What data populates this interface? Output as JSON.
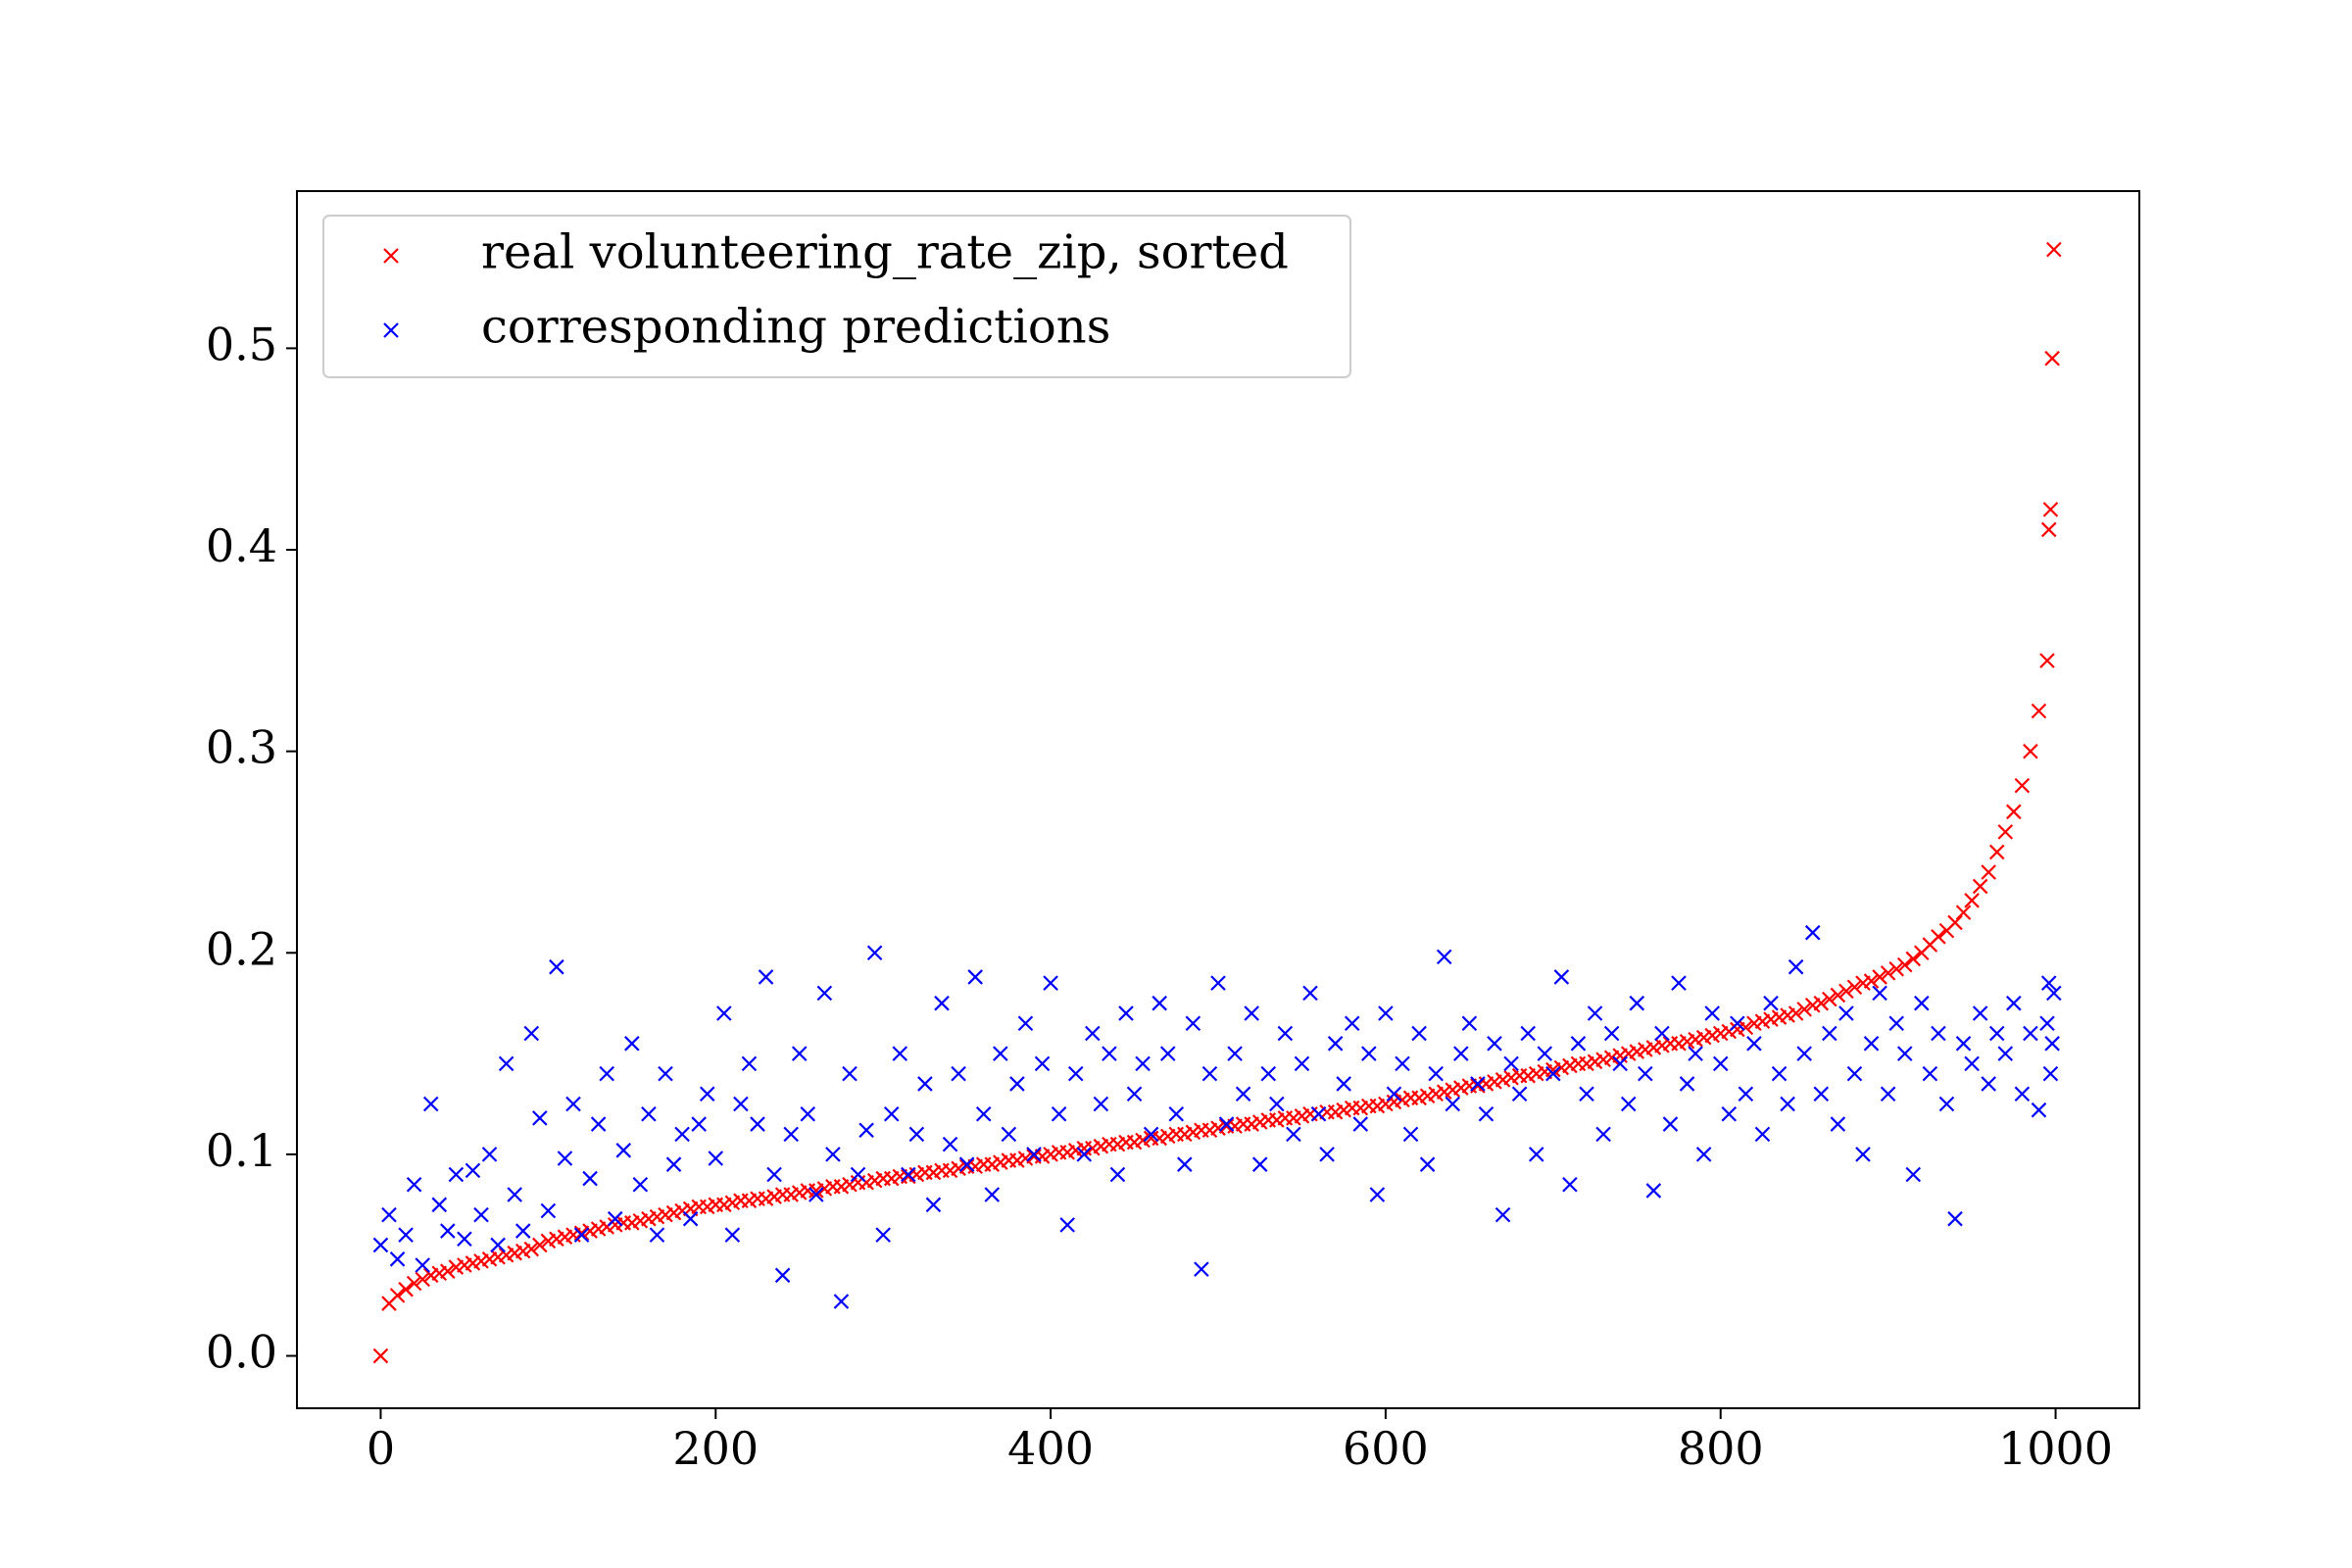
{
  "chart_data": {
    "type": "scatter",
    "xlim": [
      -50,
      1050
    ],
    "ylim": [
      -0.026,
      0.578
    ],
    "xticks": [
      0,
      200,
      400,
      600,
      800,
      1000
    ],
    "yticks": [
      {
        "value": 0,
        "label": "0.0"
      },
      0.1,
      0.2,
      0.3,
      0.4,
      0.5
    ],
    "legend": "upper left",
    "marker": "x",
    "x": [
      0,
      5,
      10,
      15,
      20,
      25,
      30,
      35,
      40,
      45,
      50,
      55,
      60,
      65,
      70,
      75,
      80,
      85,
      90,
      95,
      100,
      105,
      110,
      115,
      120,
      125,
      130,
      135,
      140,
      145,
      150,
      155,
      160,
      165,
      170,
      175,
      180,
      185,
      190,
      195,
      200,
      205,
      210,
      215,
      220,
      225,
      230,
      235,
      240,
      245,
      250,
      255,
      260,
      265,
      270,
      275,
      280,
      285,
      290,
      295,
      300,
      305,
      310,
      315,
      320,
      325,
      330,
      335,
      340,
      345,
      350,
      355,
      360,
      365,
      370,
      375,
      380,
      385,
      390,
      395,
      400,
      405,
      410,
      415,
      420,
      425,
      430,
      435,
      440,
      445,
      450,
      455,
      460,
      465,
      470,
      475,
      480,
      485,
      490,
      495,
      500,
      505,
      510,
      515,
      520,
      525,
      530,
      535,
      540,
      545,
      550,
      555,
      560,
      565,
      570,
      575,
      580,
      585,
      590,
      595,
      600,
      605,
      610,
      615,
      620,
      625,
      630,
      635,
      640,
      645,
      650,
      655,
      660,
      665,
      670,
      675,
      680,
      685,
      690,
      695,
      700,
      705,
      710,
      715,
      720,
      725,
      730,
      735,
      740,
      745,
      750,
      755,
      760,
      765,
      770,
      775,
      780,
      785,
      790,
      795,
      800,
      805,
      810,
      815,
      820,
      825,
      830,
      835,
      840,
      845,
      850,
      855,
      860,
      865,
      870,
      875,
      880,
      885,
      890,
      895,
      900,
      905,
      910,
      915,
      920,
      925,
      930,
      935,
      940,
      945,
      950,
      955,
      960,
      965,
      970,
      975,
      980,
      985,
      990,
      995,
      996,
      997,
      998,
      999
    ],
    "series": [
      {
        "name": "real volunteering_rate_zip, sorted",
        "color": "#ff0000",
        "values": [
          0.0,
          0.026,
          0.03,
          0.033,
          0.036,
          0.038,
          0.04,
          0.041,
          0.042,
          0.044,
          0.045,
          0.046,
          0.047,
          0.048,
          0.049,
          0.05,
          0.051,
          0.052,
          0.053,
          0.055,
          0.057,
          0.058,
          0.059,
          0.06,
          0.061,
          0.062,
          0.063,
          0.064,
          0.065,
          0.066,
          0.066,
          0.067,
          0.068,
          0.069,
          0.07,
          0.071,
          0.072,
          0.073,
          0.074,
          0.074,
          0.075,
          0.075,
          0.076,
          0.077,
          0.077,
          0.078,
          0.078,
          0.079,
          0.08,
          0.08,
          0.081,
          0.082,
          0.082,
          0.083,
          0.084,
          0.084,
          0.085,
          0.086,
          0.086,
          0.087,
          0.088,
          0.088,
          0.089,
          0.089,
          0.09,
          0.091,
          0.091,
          0.092,
          0.092,
          0.093,
          0.094,
          0.094,
          0.095,
          0.095,
          0.096,
          0.097,
          0.097,
          0.098,
          0.099,
          0.099,
          0.1,
          0.101,
          0.101,
          0.102,
          0.103,
          0.103,
          0.104,
          0.105,
          0.105,
          0.106,
          0.106,
          0.107,
          0.108,
          0.108,
          0.109,
          0.11,
          0.11,
          0.111,
          0.112,
          0.112,
          0.113,
          0.114,
          0.114,
          0.115,
          0.115,
          0.116,
          0.117,
          0.117,
          0.118,
          0.118,
          0.119,
          0.12,
          0.12,
          0.121,
          0.121,
          0.122,
          0.123,
          0.123,
          0.124,
          0.124,
          0.125,
          0.126,
          0.127,
          0.128,
          0.128,
          0.129,
          0.13,
          0.131,
          0.132,
          0.133,
          0.134,
          0.134,
          0.135,
          0.136,
          0.137,
          0.138,
          0.139,
          0.139,
          0.14,
          0.141,
          0.142,
          0.143,
          0.144,
          0.145,
          0.145,
          0.146,
          0.147,
          0.148,
          0.149,
          0.15,
          0.151,
          0.152,
          0.153,
          0.154,
          0.155,
          0.155,
          0.156,
          0.157,
          0.158,
          0.159,
          0.16,
          0.161,
          0.162,
          0.163,
          0.165,
          0.166,
          0.167,
          0.168,
          0.169,
          0.17,
          0.172,
          0.174,
          0.175,
          0.177,
          0.179,
          0.181,
          0.183,
          0.185,
          0.186,
          0.188,
          0.19,
          0.192,
          0.194,
          0.197,
          0.2,
          0.204,
          0.208,
          0.211,
          0.215,
          0.22,
          0.226,
          0.233,
          0.24,
          0.25,
          0.26,
          0.27,
          0.283,
          0.3,
          0.32,
          0.345,
          0.41,
          0.42,
          0.495,
          0.549
        ]
      },
      {
        "name": "corresponding predictions",
        "color": "#0000ff",
        "values": [
          0.055,
          0.07,
          0.048,
          0.06,
          0.085,
          0.045,
          0.125,
          0.075,
          0.062,
          0.09,
          0.058,
          0.092,
          0.07,
          0.1,
          0.055,
          0.145,
          0.08,
          0.062,
          0.16,
          0.118,
          0.072,
          0.193,
          0.098,
          0.125,
          0.06,
          0.088,
          0.115,
          0.14,
          0.068,
          0.102,
          0.155,
          0.085,
          0.12,
          0.06,
          0.14,
          0.095,
          0.11,
          0.068,
          0.115,
          0.13,
          0.098,
          0.17,
          0.06,
          0.125,
          0.145,
          0.115,
          0.188,
          0.09,
          0.04,
          0.11,
          0.15,
          0.12,
          0.08,
          0.18,
          0.1,
          0.027,
          0.14,
          0.09,
          0.112,
          0.2,
          0.06,
          0.12,
          0.15,
          0.09,
          0.11,
          0.135,
          0.075,
          0.175,
          0.105,
          0.14,
          0.095,
          0.188,
          0.12,
          0.08,
          0.15,
          0.11,
          0.135,
          0.165,
          0.1,
          0.145,
          0.185,
          0.12,
          0.065,
          0.14,
          0.1,
          0.16,
          0.125,
          0.15,
          0.09,
          0.17,
          0.13,
          0.145,
          0.11,
          0.175,
          0.15,
          0.12,
          0.095,
          0.165,
          0.043,
          0.14,
          0.185,
          0.115,
          0.15,
          0.13,
          0.17,
          0.095,
          0.14,
          0.125,
          0.16,
          0.11,
          0.145,
          0.18,
          0.12,
          0.1,
          0.155,
          0.135,
          0.165,
          0.115,
          0.15,
          0.08,
          0.17,
          0.13,
          0.145,
          0.11,
          0.16,
          0.095,
          0.14,
          0.198,
          0.125,
          0.15,
          0.165,
          0.135,
          0.12,
          0.155,
          0.07,
          0.145,
          0.13,
          0.16,
          0.1,
          0.15,
          0.14,
          0.188,
          0.085,
          0.155,
          0.13,
          0.17,
          0.11,
          0.16,
          0.145,
          0.125,
          0.175,
          0.14,
          0.082,
          0.16,
          0.115,
          0.185,
          0.135,
          0.15,
          0.1,
          0.17,
          0.145,
          0.12,
          0.165,
          0.13,
          0.155,
          0.11,
          0.175,
          0.14,
          0.125,
          0.193,
          0.15,
          0.21,
          0.13,
          0.16,
          0.115,
          0.17,
          0.14,
          0.1,
          0.155,
          0.18,
          0.13,
          0.165,
          0.15,
          0.09,
          0.175,
          0.14,
          0.16,
          0.125,
          0.068,
          0.155,
          0.145,
          0.17,
          0.135,
          0.16,
          0.15,
          0.175,
          0.13,
          0.16,
          0.122,
          0.165,
          0.185,
          0.14,
          0.155,
          0.18
        ]
      }
    ]
  }
}
